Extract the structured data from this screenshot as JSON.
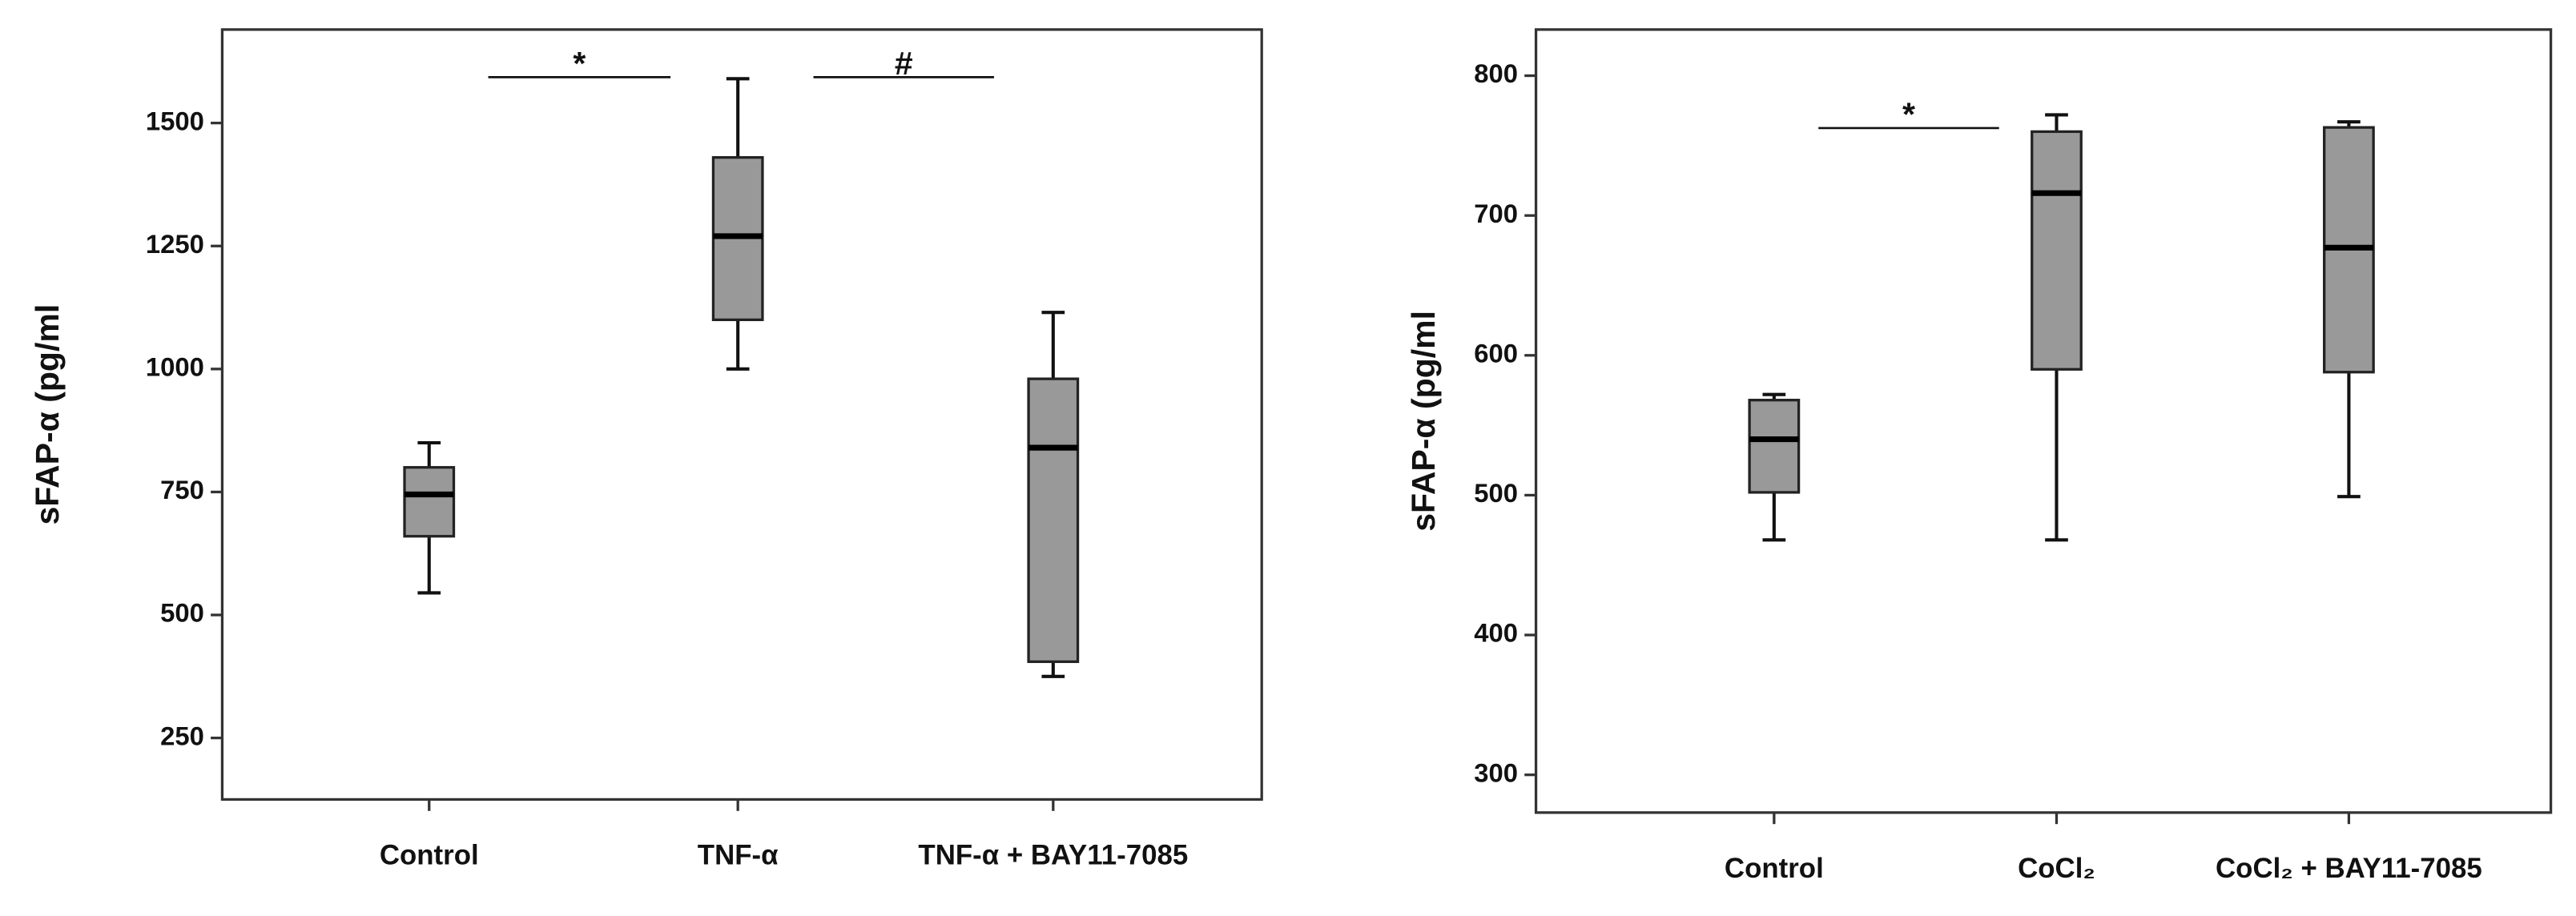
{
  "chart_data": [
    {
      "type": "box",
      "y_label": "sFAP-α (pg/ml",
      "categories": [
        "Control",
        "TNF-α",
        "TNF-α + BAY11-7085"
      ],
      "boxes": [
        {
          "min": 545,
          "q1": 660,
          "median": 745,
          "q3": 800,
          "max": 850
        },
        {
          "min": 1000,
          "q1": 1100,
          "median": 1270,
          "q3": 1430,
          "max": 1590
        },
        {
          "min": 375,
          "q1": 405,
          "median": 840,
          "q3": 980,
          "max": 1115
        }
      ],
      "color": "#999999",
      "ylim": [
        125,
        1690
      ],
      "yticks": [
        250,
        500,
        750,
        1000,
        1250,
        1500
      ],
      "annotations": [
        "*",
        "#"
      ]
    },
    {
      "type": "box",
      "y_label": "sFAP-α (pg/ml",
      "categories": [
        "Control",
        "CoCl₂",
        "CoCl₂ + BAY11-7085"
      ],
      "boxes": [
        {
          "min": 468,
          "q1": 502,
          "median": 540,
          "q3": 568,
          "max": 572
        },
        {
          "min": 468,
          "q1": 590,
          "median": 716,
          "q3": 760,
          "max": 772
        },
        {
          "min": 499,
          "q1": 588,
          "median": 677,
          "q3": 763,
          "max": 767
        }
      ],
      "color": "#999999",
      "ylim": [
        273,
        833
      ],
      "yticks": [
        300,
        400,
        500,
        600,
        700,
        800
      ],
      "annotations": [
        "*"
      ]
    }
  ]
}
